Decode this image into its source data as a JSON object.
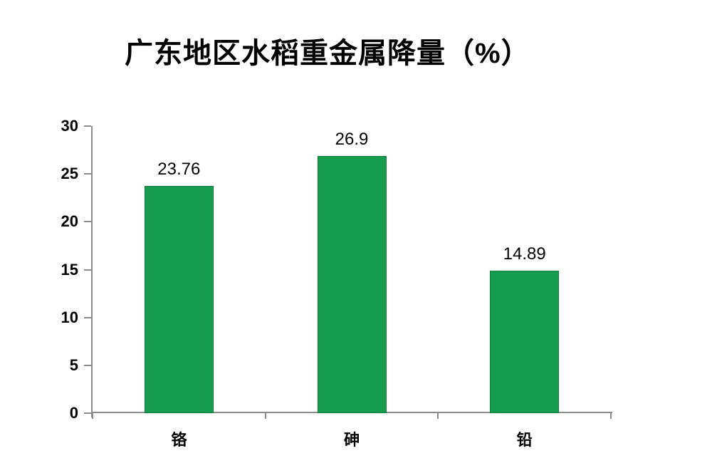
{
  "page": {
    "background": "#ffffff"
  },
  "chart_data": {
    "type": "bar",
    "title": "广东地区水稻重金属降量（%）",
    "categories": [
      "铬",
      "砷",
      "铅"
    ],
    "values": [
      23.76,
      26.9,
      14.89
    ],
    "value_labels": [
      "23.76",
      "26.9",
      "14.89"
    ],
    "xlabel": "",
    "ylabel": "",
    "ylim": [
      0,
      30
    ],
    "yticks": [
      0,
      5,
      10,
      15,
      20,
      25,
      30
    ],
    "grid": false,
    "legend": null,
    "bar_color": "#169c4e",
    "bar_border_color": "#0f7b3d",
    "axis_color": "#8c8c8c",
    "text_color": "#000000"
  }
}
